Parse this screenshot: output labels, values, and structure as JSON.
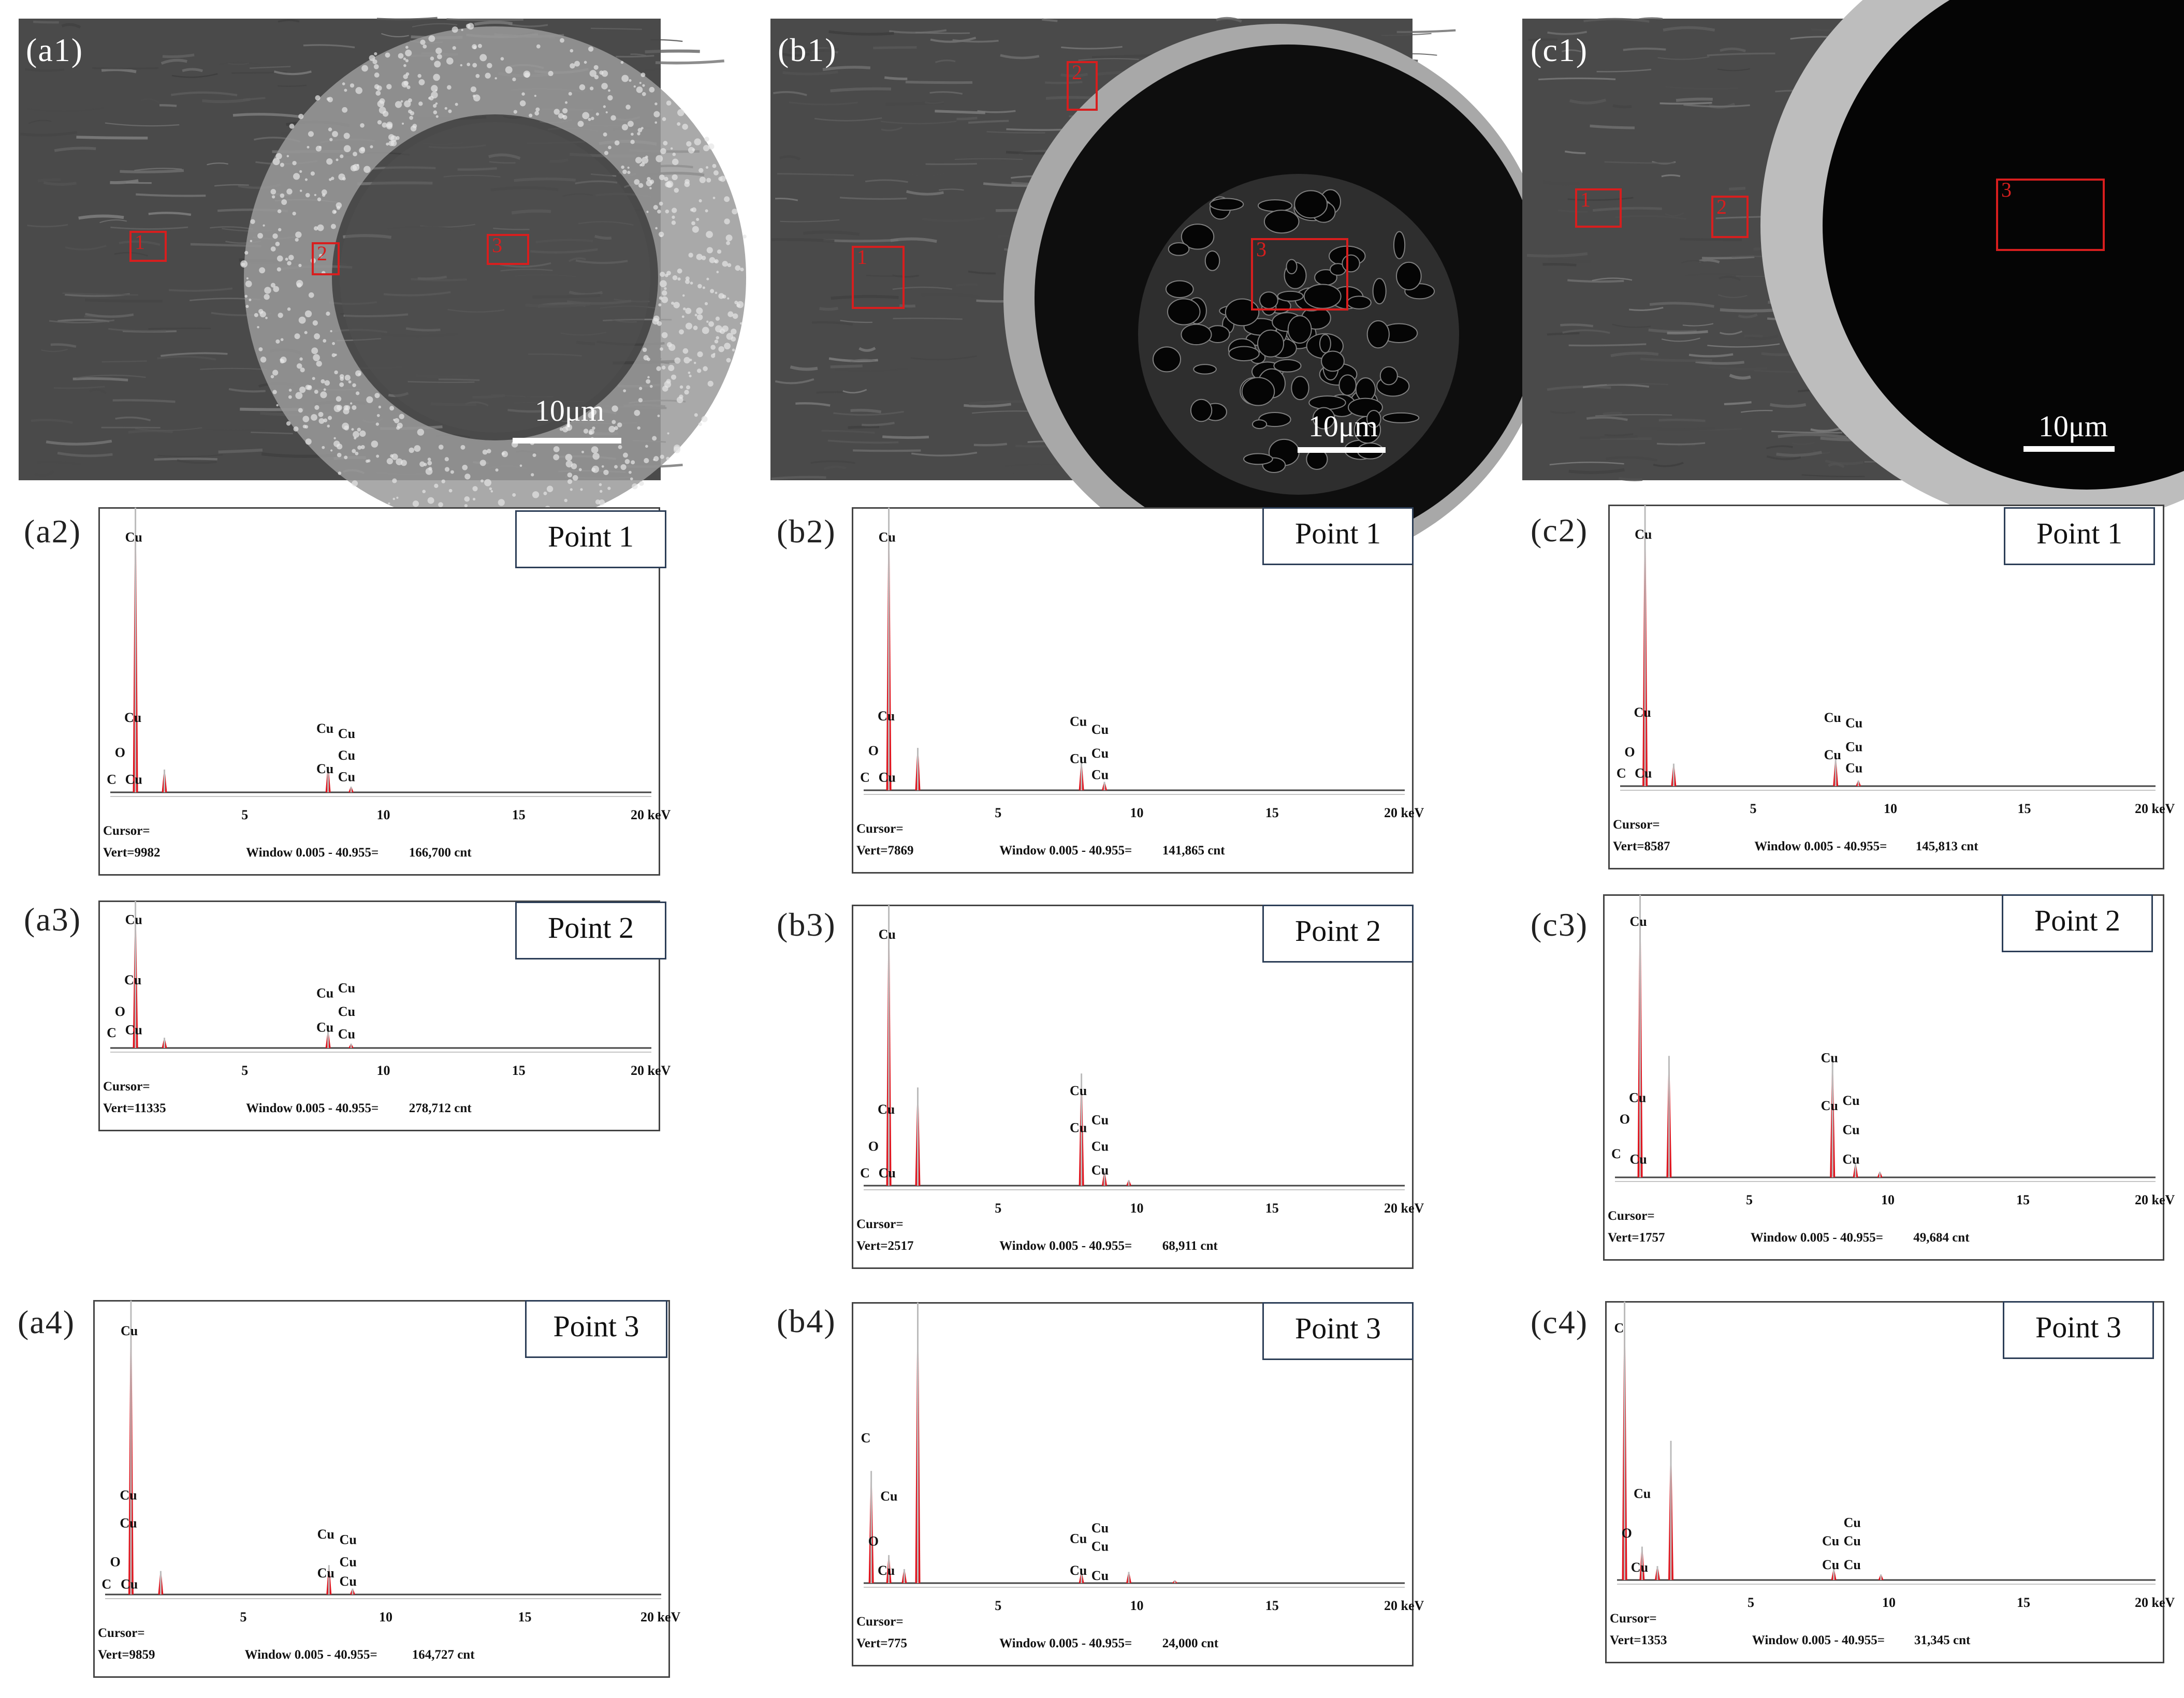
{
  "figure": {
    "scale_bar_label": "10μm",
    "energy_unit": "keV",
    "x_ticks": [
      "5",
      "10",
      "15",
      "20 keV"
    ],
    "cursor_label": "Cursor=",
    "colors": {
      "peak": "#e0141e",
      "spectrum_line": "#444444",
      "roi": "#d81e1e",
      "tag_border": "#2c3e57"
    }
  },
  "columns": [
    {
      "image": {
        "label": "(a1)",
        "description_style": "sem-ring-granular",
        "rois": [
          "1",
          "2",
          "3"
        ]
      }
    },
    {
      "image": {
        "label": "(b1)",
        "description_style": "sem-hole-porous",
        "rois": [
          "1",
          "2",
          "3"
        ]
      }
    },
    {
      "image": {
        "label": "(c1)",
        "description_style": "sem-hole-dark",
        "rois": [
          "1",
          "2",
          "3"
        ]
      }
    }
  ],
  "chart_data": [
    {
      "label": "(a2)",
      "point": "Point 1",
      "type": "area",
      "xlim": [
        0,
        20
      ],
      "xlabel": "keV",
      "vert": "Vert=9982",
      "window": "Window 0.005 - 40.955=",
      "total": "166,700 cnt",
      "peaks": [
        {
          "x": 0.93,
          "h": 1.0
        },
        {
          "x": 2.0,
          "h": 0.08
        },
        {
          "x": 8.05,
          "h": 0.09
        },
        {
          "x": 8.9,
          "h": 0.02
        }
      ],
      "element_labels": [
        {
          "text": "Cu",
          "x": 0.93,
          "h": 0.92
        },
        {
          "text": "Cu",
          "x": 0.9,
          "h": 0.25
        },
        {
          "text": "O",
          "x": 0.55,
          "h": 0.12
        },
        {
          "text": "C",
          "x": 0.25,
          "h": 0.02
        },
        {
          "text": "Cu",
          "x": 0.93,
          "h": 0.02
        },
        {
          "text": "Cu",
          "x": 8.0,
          "h": 0.21
        },
        {
          "text": "Cu",
          "x": 8.8,
          "h": 0.19
        },
        {
          "text": "Cu",
          "x": 8.0,
          "h": 0.06
        },
        {
          "text": "Cu",
          "x": 8.8,
          "h": 0.11
        },
        {
          "text": "Cu",
          "x": 8.8,
          "h": 0.03
        }
      ]
    },
    {
      "label": "(a3)",
      "point": "Point 2",
      "type": "area",
      "xlim": [
        0,
        20
      ],
      "xlabel": "keV",
      "vert": "Vert=11335",
      "window": "Window 0.005 - 40.955=",
      "total": "278,712 cnt",
      "peaks": [
        {
          "x": 0.93,
          "h": 1.0
        },
        {
          "x": 2.0,
          "h": 0.07
        },
        {
          "x": 8.05,
          "h": 0.12
        },
        {
          "x": 8.9,
          "h": 0.03
        }
      ],
      "element_labels": [
        {
          "text": "Cu",
          "x": 0.93,
          "h": 0.92
        },
        {
          "text": "Cu",
          "x": 0.9,
          "h": 0.46
        },
        {
          "text": "O",
          "x": 0.55,
          "h": 0.22
        },
        {
          "text": "C",
          "x": 0.25,
          "h": 0.06
        },
        {
          "text": "Cu",
          "x": 0.93,
          "h": 0.08
        },
        {
          "text": "Cu",
          "x": 8.0,
          "h": 0.36
        },
        {
          "text": "Cu",
          "x": 8.8,
          "h": 0.4
        },
        {
          "text": "Cu",
          "x": 8.0,
          "h": 0.1
        },
        {
          "text": "Cu",
          "x": 8.8,
          "h": 0.22
        },
        {
          "text": "Cu",
          "x": 8.8,
          "h": 0.05
        }
      ]
    },
    {
      "label": "(a4)",
      "point": "Point 3",
      "type": "area",
      "xlim": [
        0,
        20
      ],
      "xlabel": "keV",
      "vert": "Vert=9859",
      "window": "Window 0.005 - 40.955=",
      "total": "164,727 cnt",
      "peaks": [
        {
          "x": 0.93,
          "h": 1.0
        },
        {
          "x": 2.0,
          "h": 0.08
        },
        {
          "x": 8.05,
          "h": 0.1
        },
        {
          "x": 8.9,
          "h": 0.02
        }
      ],
      "element_labels": [
        {
          "text": "Cu",
          "x": 0.93,
          "h": 0.92
        },
        {
          "text": "Cu",
          "x": 0.9,
          "h": 0.33
        },
        {
          "text": "Cu",
          "x": 0.9,
          "h": 0.23
        },
        {
          "text": "O",
          "x": 0.55,
          "h": 0.09
        },
        {
          "text": "C",
          "x": 0.25,
          "h": 0.01
        },
        {
          "text": "Cu",
          "x": 0.93,
          "h": 0.01
        },
        {
          "text": "Cu",
          "x": 8.0,
          "h": 0.19
        },
        {
          "text": "Cu",
          "x": 8.8,
          "h": 0.17
        },
        {
          "text": "Cu",
          "x": 8.0,
          "h": 0.05
        },
        {
          "text": "Cu",
          "x": 8.8,
          "h": 0.09
        },
        {
          "text": "Cu",
          "x": 8.8,
          "h": 0.02
        }
      ]
    },
    {
      "label": "(b2)",
      "point": "Point 1",
      "type": "area",
      "xlim": [
        0,
        20
      ],
      "xlabel": "keV",
      "vert": "Vert=7869",
      "window": "Window 0.005 - 40.955=",
      "total": "141,865 cnt",
      "peaks": [
        {
          "x": 0.93,
          "h": 1.0
        },
        {
          "x": 2.0,
          "h": 0.15
        },
        {
          "x": 8.05,
          "h": 0.1
        },
        {
          "x": 8.9,
          "h": 0.03
        }
      ],
      "element_labels": [
        {
          "text": "Cu",
          "x": 0.93,
          "h": 0.92
        },
        {
          "text": "Cu",
          "x": 0.9,
          "h": 0.25
        },
        {
          "text": "O",
          "x": 0.55,
          "h": 0.12
        },
        {
          "text": "C",
          "x": 0.25,
          "h": 0.02
        },
        {
          "text": "Cu",
          "x": 0.93,
          "h": 0.02
        },
        {
          "text": "Cu",
          "x": 8.0,
          "h": 0.23
        },
        {
          "text": "Cu",
          "x": 8.8,
          "h": 0.2
        },
        {
          "text": "Cu",
          "x": 8.0,
          "h": 0.09
        },
        {
          "text": "Cu",
          "x": 8.8,
          "h": 0.11
        },
        {
          "text": "Cu",
          "x": 8.8,
          "h": 0.03
        }
      ]
    },
    {
      "label": "(b3)",
      "point": "Point 2",
      "type": "area",
      "xlim": [
        0,
        20
      ],
      "xlabel": "keV",
      "vert": "Vert=2517",
      "window": "Window 0.005 - 40.955=",
      "total": "68,911 cnt",
      "peaks": [
        {
          "x": 0.93,
          "h": 1.0
        },
        {
          "x": 2.0,
          "h": 0.35
        },
        {
          "x": 8.05,
          "h": 0.4
        },
        {
          "x": 8.9,
          "h": 0.05
        },
        {
          "x": 9.8,
          "h": 0.02
        }
      ],
      "element_labels": [
        {
          "text": "Cu",
          "x": 0.93,
          "h": 0.92
        },
        {
          "text": "Cu",
          "x": 0.9,
          "h": 0.26
        },
        {
          "text": "O",
          "x": 0.55,
          "h": 0.12
        },
        {
          "text": "C",
          "x": 0.25,
          "h": 0.02
        },
        {
          "text": "Cu",
          "x": 0.93,
          "h": 0.02
        },
        {
          "text": "Cu",
          "x": 8.0,
          "h": 0.33
        },
        {
          "text": "Cu",
          "x": 8.0,
          "h": 0.19
        },
        {
          "text": "Cu",
          "x": 8.8,
          "h": 0.22
        },
        {
          "text": "Cu",
          "x": 8.8,
          "h": 0.12
        },
        {
          "text": "Cu",
          "x": 8.8,
          "h": 0.03
        }
      ]
    },
    {
      "label": "(b4)",
      "point": "Point 3",
      "type": "area",
      "xlim": [
        0,
        20
      ],
      "xlabel": "keV",
      "vert": "Vert=775",
      "window": "Window 0.005 - 40.955=",
      "total": "24,000 cnt",
      "peaks": [
        {
          "x": 0.28,
          "h": 0.4
        },
        {
          "x": 0.93,
          "h": 0.1
        },
        {
          "x": 1.5,
          "h": 0.05
        },
        {
          "x": 2.0,
          "h": 1.0
        },
        {
          "x": 8.05,
          "h": 0.04
        },
        {
          "x": 9.8,
          "h": 0.04
        },
        {
          "x": 11.5,
          "h": 0.01
        }
      ],
      "element_labels": [
        {
          "text": "C",
          "x": 0.28,
          "h": 0.52
        },
        {
          "text": "Cu",
          "x": 1.0,
          "h": 0.3
        },
        {
          "text": "O",
          "x": 0.55,
          "h": 0.13
        },
        {
          "text": "Cu",
          "x": 0.9,
          "h": 0.02
        },
        {
          "text": "Cu",
          "x": 8.0,
          "h": 0.14
        },
        {
          "text": "Cu",
          "x": 8.8,
          "h": 0.18
        },
        {
          "text": "Cu",
          "x": 8.8,
          "h": 0.11
        },
        {
          "text": "Cu",
          "x": 8.0,
          "h": 0.02
        },
        {
          "text": "Cu",
          "x": 8.8,
          "h": 0.0
        }
      ]
    },
    {
      "label": "(c2)",
      "point": "Point 1",
      "type": "area",
      "xlim": [
        0,
        20
      ],
      "xlabel": "keV",
      "vert": "Vert=8587",
      "window": "Window 0.005 - 40.955=",
      "total": "145,813 cnt",
      "peaks": [
        {
          "x": 0.93,
          "h": 1.0
        },
        {
          "x": 2.0,
          "h": 0.08
        },
        {
          "x": 8.05,
          "h": 0.1
        },
        {
          "x": 8.9,
          "h": 0.02
        }
      ],
      "element_labels": [
        {
          "text": "Cu",
          "x": 0.93,
          "h": 0.92
        },
        {
          "text": "Cu",
          "x": 0.9,
          "h": 0.25
        },
        {
          "text": "O",
          "x": 0.55,
          "h": 0.1
        },
        {
          "text": "C",
          "x": 0.25,
          "h": 0.02
        },
        {
          "text": "Cu",
          "x": 0.93,
          "h": 0.02
        },
        {
          "text": "Cu",
          "x": 8.0,
          "h": 0.23
        },
        {
          "text": "Cu",
          "x": 8.8,
          "h": 0.21
        },
        {
          "text": "Cu",
          "x": 8.0,
          "h": 0.09
        },
        {
          "text": "Cu",
          "x": 8.8,
          "h": 0.12
        },
        {
          "text": "Cu",
          "x": 8.8,
          "h": 0.04
        }
      ]
    },
    {
      "label": "(c3)",
      "point": "Point 2",
      "type": "area",
      "xlim": [
        0,
        20
      ],
      "xlabel": "keV",
      "vert": "Vert=1757",
      "window": "Window 0.005 - 40.955=",
      "total": "49,684 cnt",
      "peaks": [
        {
          "x": 0.93,
          "h": 1.0
        },
        {
          "x": 2.0,
          "h": 0.43
        },
        {
          "x": 8.05,
          "h": 0.42
        },
        {
          "x": 8.9,
          "h": 0.05
        },
        {
          "x": 9.8,
          "h": 0.02
        }
      ],
      "element_labels": [
        {
          "text": "Cu",
          "x": 0.93,
          "h": 0.93
        },
        {
          "text": "Cu",
          "x": 0.9,
          "h": 0.27
        },
        {
          "text": "O",
          "x": 0.55,
          "h": 0.19
        },
        {
          "text": "C",
          "x": 0.25,
          "h": 0.06
        },
        {
          "text": "Cu",
          "x": 0.93,
          "h": 0.04
        },
        {
          "text": "Cu",
          "x": 8.0,
          "h": 0.42
        },
        {
          "text": "Cu",
          "x": 8.0,
          "h": 0.24
        },
        {
          "text": "Cu",
          "x": 8.8,
          "h": 0.26
        },
        {
          "text": "Cu",
          "x": 8.8,
          "h": 0.15
        },
        {
          "text": "Cu",
          "x": 8.8,
          "h": 0.04
        }
      ]
    },
    {
      "label": "(c4)",
      "point": "Point 3",
      "type": "area",
      "xlim": [
        0,
        20
      ],
      "xlabel": "keV",
      "vert": "Vert=1353",
      "window": "Window 0.005 - 40.955=",
      "total": "31,345 cnt",
      "peaks": [
        {
          "x": 0.28,
          "h": 1.0
        },
        {
          "x": 0.93,
          "h": 0.12
        },
        {
          "x": 1.5,
          "h": 0.05
        },
        {
          "x": 2.0,
          "h": 0.5
        },
        {
          "x": 8.05,
          "h": 0.04
        },
        {
          "x": 9.8,
          "h": 0.02
        }
      ],
      "element_labels": [
        {
          "text": "C",
          "x": 0.28,
          "h": 0.93
        },
        {
          "text": "Cu",
          "x": 1.0,
          "h": 0.3
        },
        {
          "text": "O",
          "x": 0.55,
          "h": 0.15
        },
        {
          "text": "Cu",
          "x": 0.9,
          "h": 0.02
        },
        {
          "text": "Cu",
          "x": 8.0,
          "h": 0.12
        },
        {
          "text": "Cu",
          "x": 8.8,
          "h": 0.19
        },
        {
          "text": "Cu",
          "x": 8.8,
          "h": 0.12
        },
        {
          "text": "Cu",
          "x": 8.0,
          "h": 0.03
        },
        {
          "text": "Cu",
          "x": 8.8,
          "h": 0.03
        }
      ]
    }
  ]
}
